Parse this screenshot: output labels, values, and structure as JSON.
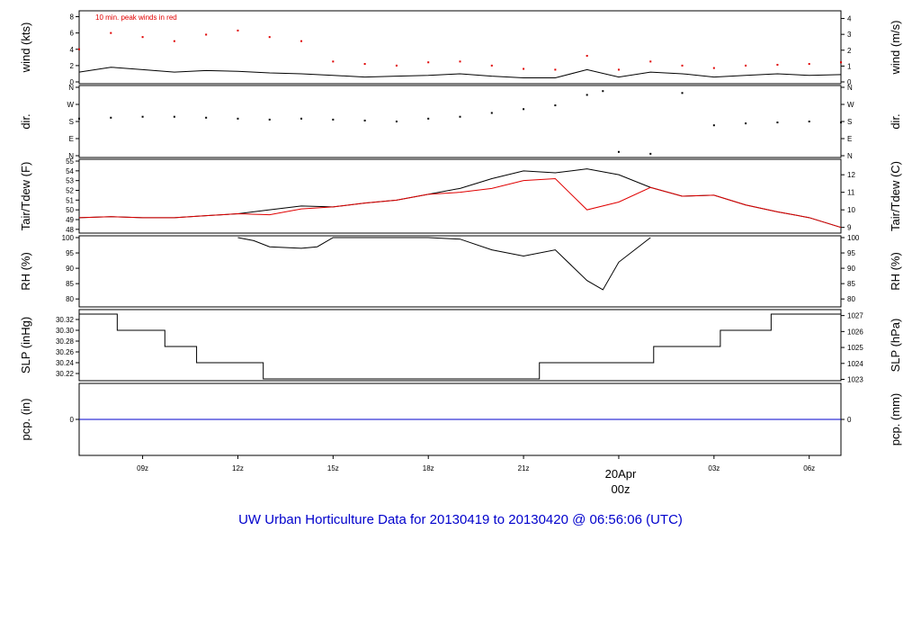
{
  "colors": {
    "series_primary": "#000000",
    "series_peak": "#e00000",
    "precip": "#0000cc",
    "title": "#0000cc",
    "date_marker": "#e00000"
  },
  "title": "UW Urban Horticulture Data for 20130419  to  20130420 @ 06:56:06  (UTC)",
  "time_axis": {
    "start_hour": 7,
    "end_hour": 31,
    "tick_hours": [
      9,
      12,
      15,
      18,
      21,
      24,
      27,
      30
    ],
    "tick_labels": [
      "09z",
      "12z",
      "15z",
      "18z",
      "21z",
      "20Apr",
      "03z",
      "06z"
    ],
    "date_label": "20Apr",
    "date_sublabel": "00z"
  },
  "chart_data": [
    {
      "type": "line",
      "panel": "wind",
      "ylabel_left": "wind (kts)",
      "ylabel_right": "wind (m/s)",
      "annotation": "10 min. peak winds in red",
      "ylim": [
        0,
        8.5
      ],
      "yticks_left": [
        0,
        2,
        4,
        6,
        8
      ],
      "yticks_right": [
        0,
        1,
        2,
        3,
        4
      ],
      "series": [
        {
          "name": "wind",
          "style": "line",
          "color": "#000000",
          "x": [
            7,
            8,
            9,
            10,
            11,
            12,
            13,
            14,
            15,
            16,
            17,
            18,
            19,
            20,
            21,
            22,
            23,
            24,
            25,
            26,
            27,
            28,
            29,
            30,
            31
          ],
          "y": [
            1.2,
            1.8,
            1.5,
            1.2,
            1.4,
            1.3,
            1.1,
            1.0,
            0.8,
            0.6,
            0.7,
            0.8,
            1.0,
            0.7,
            0.5,
            0.5,
            1.5,
            0.6,
            1.2,
            1.0,
            0.6,
            0.8,
            1.0,
            0.8,
            0.9
          ]
        },
        {
          "name": "10 min. peak winds",
          "style": "points",
          "color": "#e00000",
          "x": [
            7,
            8,
            9,
            10,
            11,
            12,
            13,
            14,
            15,
            16,
            17,
            18,
            19,
            20,
            21,
            22,
            23,
            24,
            25,
            26,
            27,
            28,
            29,
            30,
            31
          ],
          "y": [
            4.0,
            6.0,
            5.5,
            5.0,
            5.8,
            6.3,
            5.5,
            5.0,
            2.5,
            2.2,
            2.0,
            2.4,
            2.5,
            2.0,
            1.6,
            1.5,
            3.2,
            1.5,
            2.5,
            2.0,
            1.7,
            2.0,
            2.1,
            2.2,
            2.4
          ]
        }
      ]
    },
    {
      "type": "scatter",
      "panel": "dir",
      "ylabel_left": "dir.",
      "ylabel_right": "dir.",
      "ylim": [
        0,
        360
      ],
      "yticks_left": [
        "N",
        "E",
        "S",
        "W",
        "N"
      ],
      "yticks_right": [
        "N",
        "E",
        "S",
        "W",
        "N"
      ],
      "series": [
        {
          "name": "direction",
          "style": "points",
          "color": "#000000",
          "x": [
            7,
            8,
            9,
            10,
            11,
            12,
            13,
            14,
            15,
            16,
            17,
            18,
            19,
            20,
            21,
            22,
            23,
            23.5,
            24,
            25,
            26,
            27,
            28,
            29,
            30,
            31
          ],
          "y": [
            195,
            200,
            205,
            205,
            200,
            195,
            190,
            195,
            190,
            185,
            180,
            195,
            205,
            225,
            245,
            265,
            320,
            340,
            20,
            10,
            330,
            160,
            170,
            175,
            180,
            175
          ]
        }
      ]
    },
    {
      "type": "line",
      "panel": "temp",
      "ylabel_left": "Tair/Tdew (F)",
      "ylabel_right": "Tair/Tdew (C)",
      "ylim": [
        47.8,
        55
      ],
      "yticks_left": [
        48,
        49,
        50,
        51,
        52,
        53,
        54,
        55
      ],
      "yticks_right": [
        9,
        10,
        11,
        12
      ],
      "series": [
        {
          "name": "Tair",
          "style": "line",
          "color": "#000000",
          "x": [
            7,
            8,
            9,
            10,
            11,
            12,
            13,
            14,
            15,
            16,
            17,
            18,
            19,
            20,
            21,
            22,
            23,
            24,
            25,
            26,
            27,
            28,
            29,
            30,
            31
          ],
          "y": [
            49.2,
            49.3,
            49.2,
            49.2,
            49.4,
            49.6,
            50.0,
            50.4,
            50.3,
            50.7,
            51.0,
            51.6,
            52.2,
            53.2,
            54.0,
            53.8,
            54.2,
            53.6,
            52.3,
            51.4,
            51.5,
            50.5,
            49.8,
            49.2,
            48.2
          ]
        },
        {
          "name": "Tdew",
          "style": "line",
          "color": "#e00000",
          "x": [
            7,
            8,
            9,
            10,
            11,
            12,
            13,
            14,
            15,
            16,
            17,
            18,
            19,
            20,
            21,
            22,
            23,
            24,
            25,
            26,
            27,
            28,
            29,
            30,
            31
          ],
          "y": [
            49.2,
            49.3,
            49.2,
            49.2,
            49.4,
            49.6,
            49.5,
            50.1,
            50.3,
            50.7,
            51.0,
            51.6,
            51.8,
            52.2,
            53.0,
            53.2,
            50.0,
            50.8,
            52.3,
            51.4,
            51.5,
            50.5,
            49.8,
            49.2,
            48.2
          ]
        }
      ]
    },
    {
      "type": "line",
      "panel": "rh",
      "ylabel_left": "RH (%)",
      "ylabel_right": "RH (%)",
      "ylim": [
        78,
        100
      ],
      "yticks_left": [
        80,
        85,
        90,
        95,
        100
      ],
      "yticks_right": [
        80,
        85,
        90,
        95,
        100
      ],
      "series": [
        {
          "name": "RH",
          "style": "line",
          "color": "#000000",
          "x": [
            12,
            12.5,
            13,
            14,
            14.5,
            15,
            16,
            17,
            18,
            19,
            20,
            21,
            22,
            23,
            23.5,
            24,
            25
          ],
          "y": [
            100,
            99,
            97,
            96.5,
            97,
            100,
            100,
            100,
            100,
            99.5,
            96,
            94,
            96,
            86,
            83,
            92,
            100
          ]
        }
      ]
    },
    {
      "type": "line",
      "panel": "slp",
      "ylabel_left": "SLP (inHg)",
      "ylabel_right": "SLP (hPa)",
      "ylim": [
        30.21,
        30.335
      ],
      "yticks_left": [
        30.22,
        30.24,
        30.26,
        30.28,
        30.3,
        30.32
      ],
      "yticks_right": [
        1023,
        1024,
        1025,
        1026,
        1027
      ],
      "series": [
        {
          "name": "SLP",
          "style": "step",
          "color": "#000000",
          "x": [
            7,
            8.2,
            9.7,
            10.7,
            12.8,
            21.5,
            25.1,
            27.2,
            28.8,
            31
          ],
          "y": [
            30.33,
            30.3,
            30.27,
            30.24,
            30.21,
            30.24,
            30.27,
            30.3,
            30.33,
            30.33
          ]
        }
      ]
    },
    {
      "type": "line",
      "panel": "pcp",
      "ylabel_left": "pcp. (in)",
      "ylabel_right": "pcp. (mm)",
      "ylim": [
        -1,
        1
      ],
      "yticks_left": [
        0
      ],
      "yticks_right": [
        0
      ],
      "series": [
        {
          "name": "precipitation",
          "style": "line",
          "color": "#0000cc",
          "x": [
            7,
            31
          ],
          "y": [
            0,
            0
          ]
        }
      ]
    }
  ]
}
